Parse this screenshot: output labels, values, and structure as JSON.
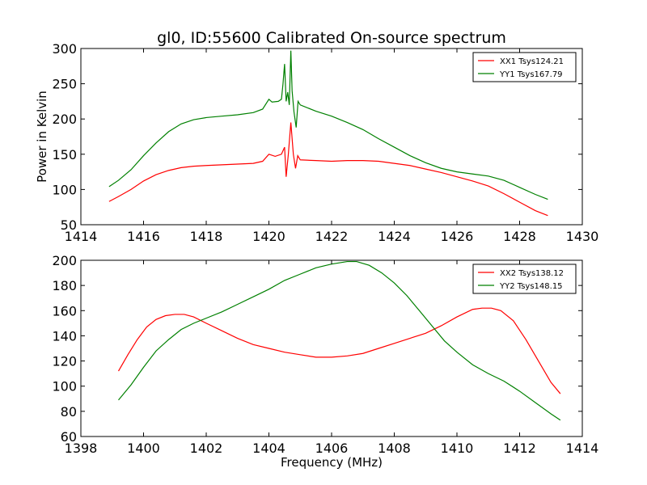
{
  "chart_data": [
    {
      "type": "line",
      "title": "gl0, ID:55600 Calibrated On-source spectrum",
      "xlabel": "",
      "ylabel": "Power in Kelvin",
      "xlim": [
        1414,
        1430
      ],
      "ylim": [
        50,
        300
      ],
      "xticks": [
        1414,
        1416,
        1418,
        1420,
        1422,
        1424,
        1426,
        1428,
        1430
      ],
      "yticks": [
        50,
        100,
        150,
        200,
        250,
        300
      ],
      "legend_position": "top-right",
      "series": [
        {
          "name": "XX1 Tsys124.21",
          "color": "#ff0000",
          "points": [
            [
              1414.9,
              83
            ],
            [
              1415.2,
              90
            ],
            [
              1415.6,
              100
            ],
            [
              1416.0,
              112
            ],
            [
              1416.4,
              121
            ],
            [
              1416.8,
              127
            ],
            [
              1417.2,
              131
            ],
            [
              1417.6,
              133
            ],
            [
              1418.0,
              134
            ],
            [
              1418.5,
              135
            ],
            [
              1419.0,
              136
            ],
            [
              1419.5,
              137
            ],
            [
              1419.8,
              140
            ],
            [
              1420.0,
              150
            ],
            [
              1420.2,
              147
            ],
            [
              1420.4,
              150
            ],
            [
              1420.5,
              160
            ],
            [
              1420.55,
              118
            ],
            [
              1420.62,
              150
            ],
            [
              1420.7,
              195
            ],
            [
              1420.78,
              150
            ],
            [
              1420.85,
              130
            ],
            [
              1420.92,
              148
            ],
            [
              1421.0,
              142
            ],
            [
              1421.5,
              141
            ],
            [
              1422.0,
              140
            ],
            [
              1422.5,
              141
            ],
            [
              1423.0,
              141
            ],
            [
              1423.5,
              140
            ],
            [
              1424.0,
              137
            ],
            [
              1424.5,
              134
            ],
            [
              1425.0,
              129
            ],
            [
              1425.5,
              124
            ],
            [
              1426.0,
              118
            ],
            [
              1426.5,
              112
            ],
            [
              1427.0,
              105
            ],
            [
              1427.5,
              94
            ],
            [
              1428.0,
              82
            ],
            [
              1428.5,
              70
            ],
            [
              1428.9,
              63
            ]
          ]
        },
        {
          "name": "YY1 Tsys167.79",
          "color": "#008000",
          "points": [
            [
              1414.9,
              104
            ],
            [
              1415.2,
              113
            ],
            [
              1415.6,
              128
            ],
            [
              1416.0,
              148
            ],
            [
              1416.4,
              166
            ],
            [
              1416.8,
              182
            ],
            [
              1417.2,
              193
            ],
            [
              1417.6,
              199
            ],
            [
              1418.0,
              202
            ],
            [
              1418.5,
              204
            ],
            [
              1419.0,
              206
            ],
            [
              1419.5,
              209
            ],
            [
              1419.8,
              214
            ],
            [
              1420.0,
              228
            ],
            [
              1420.1,
              224
            ],
            [
              1420.3,
              225
            ],
            [
              1420.4,
              228
            ],
            [
              1420.45,
              250
            ],
            [
              1420.5,
              278
            ],
            [
              1420.55,
              225
            ],
            [
              1420.6,
              238
            ],
            [
              1420.65,
              220
            ],
            [
              1420.7,
              297
            ],
            [
              1420.74,
              240
            ],
            [
              1420.8,
              210
            ],
            [
              1420.87,
              188
            ],
            [
              1420.93,
              225
            ],
            [
              1421.0,
              220
            ],
            [
              1421.5,
              211
            ],
            [
              1422.0,
              204
            ],
            [
              1422.5,
              195
            ],
            [
              1423.0,
              185
            ],
            [
              1423.5,
              172
            ],
            [
              1424.0,
              160
            ],
            [
              1424.5,
              148
            ],
            [
              1425.0,
              138
            ],
            [
              1425.5,
              130
            ],
            [
              1426.0,
              125
            ],
            [
              1426.5,
              122
            ],
            [
              1427.0,
              119
            ],
            [
              1427.5,
              113
            ],
            [
              1428.0,
              103
            ],
            [
              1428.5,
              93
            ],
            [
              1428.9,
              86
            ]
          ]
        }
      ]
    },
    {
      "type": "line",
      "title": "",
      "xlabel": "Frequency (MHz)",
      "ylabel": "",
      "xlim": [
        1398,
        1414
      ],
      "ylim": [
        60,
        200
      ],
      "xticks": [
        1398,
        1400,
        1402,
        1404,
        1406,
        1408,
        1410,
        1412,
        1414
      ],
      "yticks": [
        60,
        80,
        100,
        120,
        140,
        160,
        180,
        200
      ],
      "legend_position": "top-right",
      "series": [
        {
          "name": "XX2 Tsys138.12",
          "color": "#ff0000",
          "points": [
            [
              1399.2,
              112
            ],
            [
              1399.5,
              125
            ],
            [
              1399.8,
              137
            ],
            [
              1400.1,
              147
            ],
            [
              1400.4,
              153
            ],
            [
              1400.7,
              156
            ],
            [
              1401.0,
              157
            ],
            [
              1401.3,
              157
            ],
            [
              1401.6,
              155
            ],
            [
              1402.0,
              150
            ],
            [
              1402.5,
              144
            ],
            [
              1403.0,
              138
            ],
            [
              1403.5,
              133
            ],
            [
              1404.0,
              130
            ],
            [
              1404.5,
              127
            ],
            [
              1405.0,
              125
            ],
            [
              1405.5,
              123
            ],
            [
              1406.0,
              123
            ],
            [
              1406.5,
              124
            ],
            [
              1407.0,
              126
            ],
            [
              1407.5,
              130
            ],
            [
              1408.0,
              134
            ],
            [
              1408.5,
              138
            ],
            [
              1409.0,
              142
            ],
            [
              1409.5,
              148
            ],
            [
              1410.0,
              155
            ],
            [
              1410.5,
              161
            ],
            [
              1410.8,
              162
            ],
            [
              1411.1,
              162
            ],
            [
              1411.4,
              160
            ],
            [
              1411.8,
              152
            ],
            [
              1412.2,
              137
            ],
            [
              1412.6,
              120
            ],
            [
              1413.0,
              103
            ],
            [
              1413.3,
              94
            ]
          ]
        },
        {
          "name": "YY2 Tsys148.15",
          "color": "#008000",
          "points": [
            [
              1399.2,
              89
            ],
            [
              1399.6,
              101
            ],
            [
              1400.0,
              115
            ],
            [
              1400.4,
              128
            ],
            [
              1400.8,
              137
            ],
            [
              1401.2,
              145
            ],
            [
              1401.6,
              150
            ],
            [
              1402.0,
              154
            ],
            [
              1402.5,
              159
            ],
            [
              1403.0,
              165
            ],
            [
              1403.5,
              171
            ],
            [
              1404.0,
              177
            ],
            [
              1404.5,
              184
            ],
            [
              1405.0,
              189
            ],
            [
              1405.5,
              194
            ],
            [
              1406.0,
              197
            ],
            [
              1406.5,
              199
            ],
            [
              1406.8,
              199
            ],
            [
              1407.2,
              196
            ],
            [
              1407.6,
              190
            ],
            [
              1408.0,
              182
            ],
            [
              1408.4,
              172
            ],
            [
              1408.8,
              160
            ],
            [
              1409.2,
              148
            ],
            [
              1409.6,
              136
            ],
            [
              1410.0,
              127
            ],
            [
              1410.5,
              117
            ],
            [
              1411.0,
              110
            ],
            [
              1411.5,
              104
            ],
            [
              1412.0,
              96
            ],
            [
              1412.5,
              87
            ],
            [
              1413.0,
              78
            ],
            [
              1413.3,
              73
            ]
          ]
        }
      ]
    }
  ]
}
